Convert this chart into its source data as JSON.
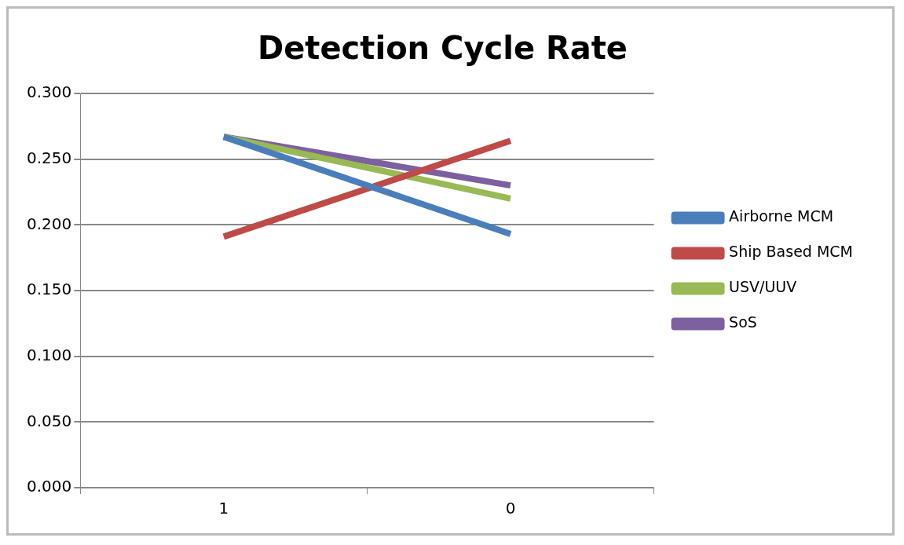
{
  "chart_data": {
    "type": "line",
    "title": "Detection Cycle Rate",
    "categories": [
      "1",
      "0"
    ],
    "series": [
      {
        "name": "Airborne MCM",
        "color": "#4a7ebb",
        "values": [
          0.267,
          0.193
        ]
      },
      {
        "name": "Ship Based MCM",
        "color": "#be4b48",
        "values": [
          0.191,
          0.264
        ]
      },
      {
        "name": "USV/UUV",
        "color": "#98b954",
        "values": [
          0.267,
          0.22
        ]
      },
      {
        "name": "SoS",
        "color": "#7d60a0",
        "values": [
          0.267,
          0.23
        ]
      }
    ],
    "ylim": [
      0,
      0.3
    ],
    "yticks": [
      {
        "value": 0,
        "label": "0.000"
      },
      {
        "value": 0.05,
        "label": "0.050"
      },
      {
        "value": 0.1,
        "label": "0.100"
      },
      {
        "value": 0.15,
        "label": "0.150"
      },
      {
        "value": 0.2,
        "label": "0.200"
      },
      {
        "value": 0.25,
        "label": "0.250"
      },
      {
        "value": 0.3,
        "label": "0.300"
      }
    ],
    "grid": "y",
    "legend": "right",
    "marker": "none",
    "line_style": "solid"
  }
}
